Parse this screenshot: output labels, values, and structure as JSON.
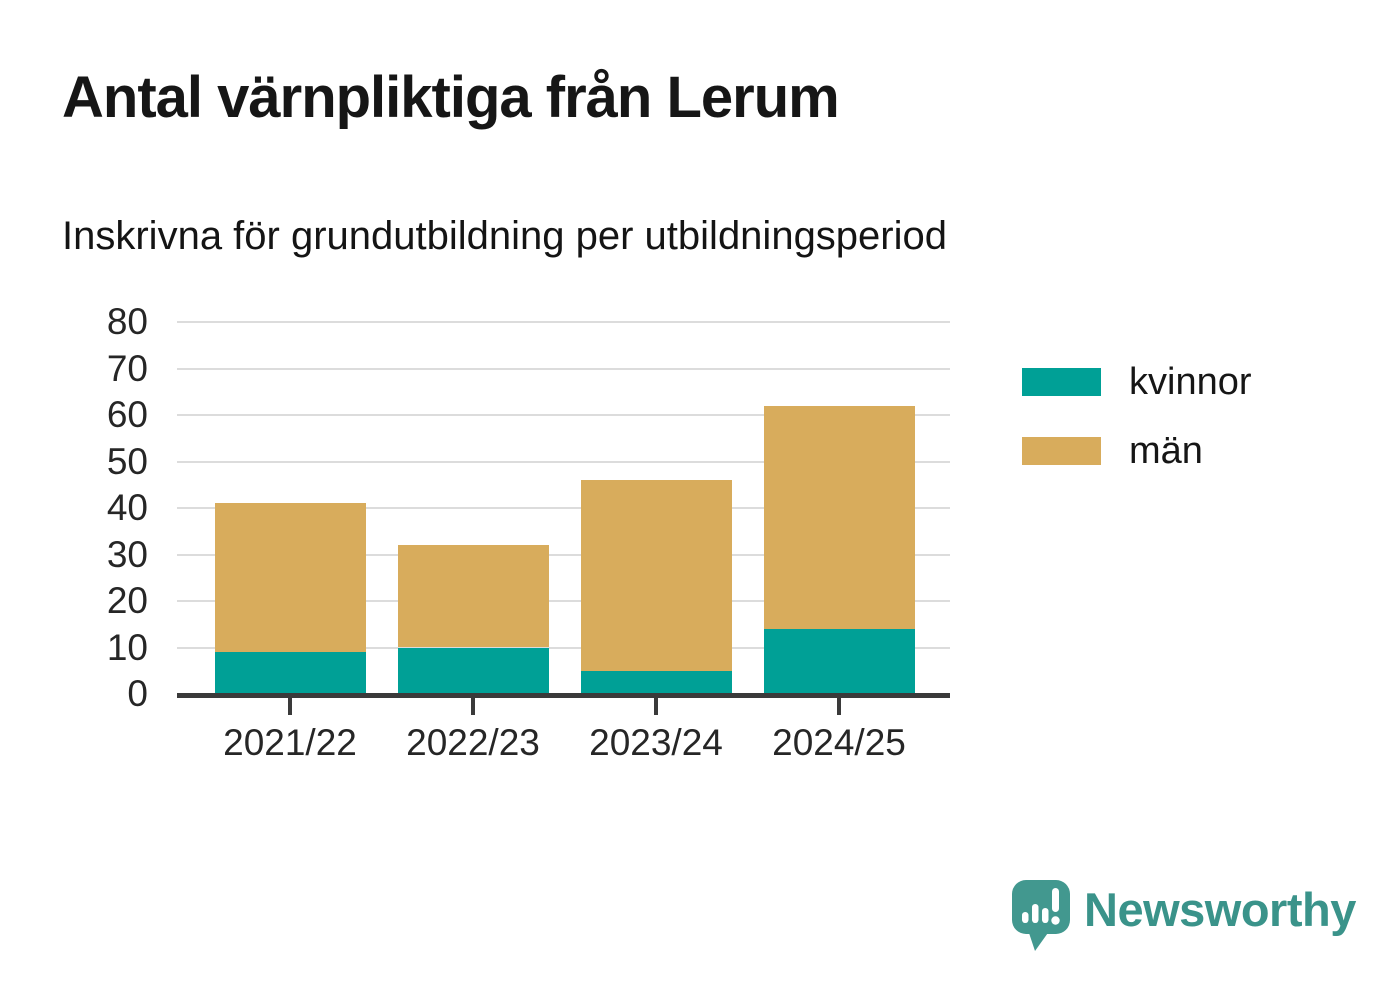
{
  "header": {
    "title": "Antal värnpliktiga från Lerum",
    "subtitle": "Inskrivna för grundutbildning per utbildningsperiod"
  },
  "chart_data": {
    "type": "bar",
    "stacked": true,
    "title": "Antal värnpliktiga från Lerum",
    "subtitle": "Inskrivna för grundutbildning per utbildningsperiod",
    "categories": [
      "2021/22",
      "2022/23",
      "2023/24",
      "2024/25"
    ],
    "series": [
      {
        "name": "kvinnor",
        "color": "#00A096",
        "values": [
          9,
          10,
          5,
          14
        ]
      },
      {
        "name": "män",
        "color": "#D8AC5C",
        "values": [
          32,
          22,
          41,
          48
        ]
      }
    ],
    "totals": [
      41,
      32,
      46,
      62
    ],
    "xlabel": "",
    "ylabel": "",
    "ylim": [
      0,
      80
    ],
    "ytick_step": 10,
    "grid": "horizontal",
    "legend_position": "right",
    "grid_color": "#dcdcdc",
    "axis_color": "#3a3a3a"
  },
  "footer": {
    "brand": "Newsworthy",
    "brand_color": "#3A938A",
    "icon_color": "#42988F"
  }
}
